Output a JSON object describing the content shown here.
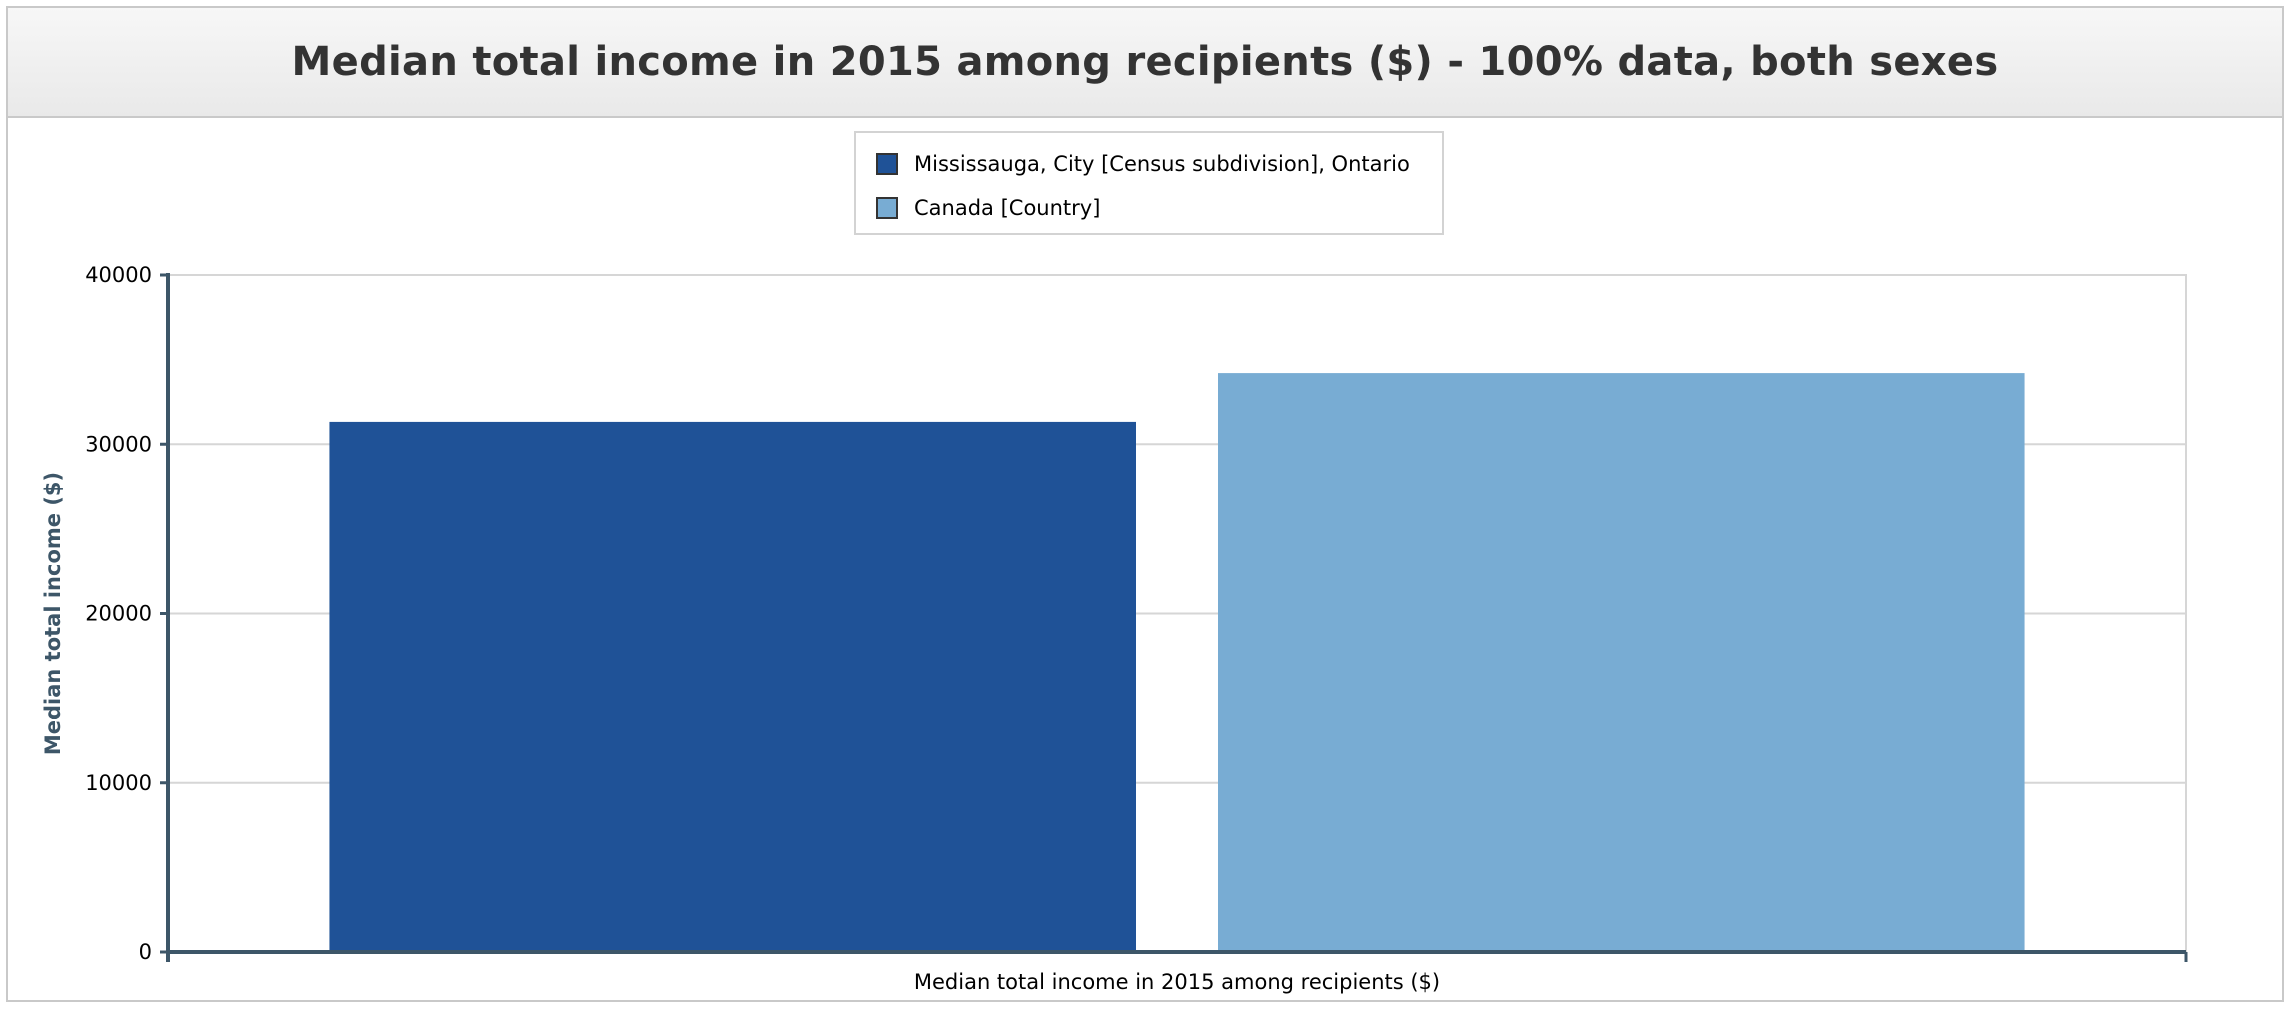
{
  "chart_data": {
    "type": "bar",
    "title": "Median total income in 2015 among recipients ($) - 100% data, both sexes",
    "xlabel": "Median total income in 2015 among recipients ($)",
    "ylabel": "Median total income ($)",
    "categories": [
      "Median total income in 2015 among recipients ($)"
    ],
    "series": [
      {
        "name": "Mississauga, City [Census subdivision], Ontario",
        "values": [
          31320
        ],
        "color": "#1f5297"
      },
      {
        "name": "Canada [Country]",
        "values": [
          34204
        ],
        "color": "#78acd3"
      }
    ],
    "ylim": [
      0,
      40000
    ],
    "yticks": [
      0,
      10000,
      20000,
      30000,
      40000
    ],
    "grid": true,
    "legend_position": "top-center"
  }
}
